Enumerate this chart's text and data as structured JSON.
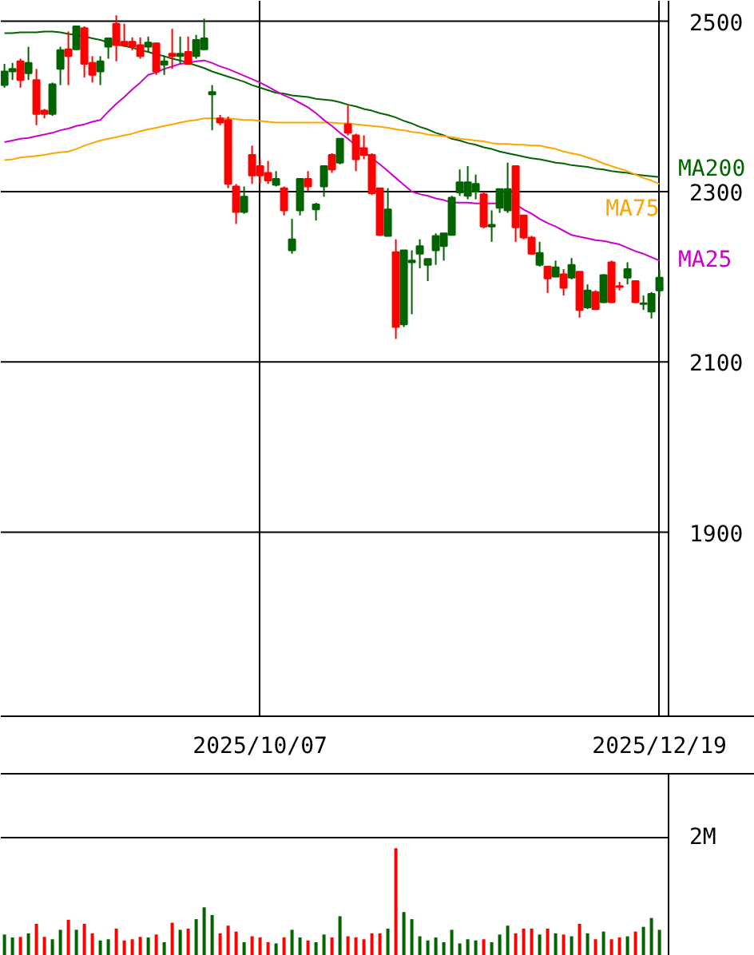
{
  "chart_data": [
    {
      "type": "candlestick",
      "categories": [
        null,
        null,
        null,
        null,
        null,
        null,
        null,
        null,
        null,
        null,
        null,
        null,
        null,
        null,
        null,
        null,
        null,
        null,
        null,
        null,
        null,
        null,
        null,
        null,
        null,
        null,
        null,
        null,
        null,
        null,
        null,
        null,
        "2025/10/07",
        null,
        null,
        null,
        null,
        null,
        null,
        null,
        null,
        null,
        null,
        null,
        null,
        null,
        null,
        null,
        null,
        null,
        null,
        null,
        null,
        null,
        null,
        null,
        null,
        null,
        null,
        null,
        null,
        null,
        null,
        null,
        null,
        null,
        null,
        null,
        null,
        null,
        null,
        null,
        null,
        null,
        null,
        null,
        null,
        null,
        null,
        null,
        null,
        null,
        "2025/12/19"
      ],
      "ohlc": [
        [
          2425,
          2450,
          2422,
          2441
        ],
        [
          2441,
          2451,
          2431,
          2444
        ],
        [
          2453,
          2456,
          2422,
          2431
        ],
        [
          2439,
          2470,
          2431,
          2451
        ],
        [
          2431,
          2444,
          2378,
          2391
        ],
        [
          2395,
          2397,
          2386,
          2391
        ],
        [
          2391,
          2428,
          2389,
          2426
        ],
        [
          2444,
          2470,
          2425,
          2466
        ],
        [
          2467,
          2488,
          2425,
          2459
        ],
        [
          2467,
          2495,
          2466,
          2494
        ],
        [
          2492,
          2494,
          2434,
          2450
        ],
        [
          2451,
          2459,
          2428,
          2437
        ],
        [
          2441,
          2459,
          2425,
          2453
        ],
        [
          2470,
          2481,
          2456,
          2480
        ],
        [
          2497,
          2507,
          2453,
          2472
        ],
        [
          2476,
          2497,
          2470,
          2472
        ],
        [
          2476,
          2481,
          2466,
          2470
        ],
        [
          2472,
          2481,
          2456,
          2459
        ],
        [
          2470,
          2482,
          2464,
          2475
        ],
        [
          2474,
          2475,
          2437,
          2441
        ],
        [
          2449,
          2459,
          2437,
          2453
        ],
        [
          2462,
          2491,
          2444,
          2459
        ],
        [
          2459,
          2482,
          2450,
          2462
        ],
        [
          2464,
          2482,
          2449,
          2450
        ],
        [
          2459,
          2484,
          2456,
          2478
        ],
        [
          2467,
          2503,
          2466,
          2480
        ],
        [
          2414,
          2425,
          2372,
          2417
        ],
        [
          2386,
          2390,
          2378,
          2381
        ],
        [
          2384,
          2388,
          2304,
          2309
        ],
        [
          2306,
          2309,
          2262,
          2276
        ],
        [
          2276,
          2306,
          2274,
          2294
        ],
        [
          2343,
          2354,
          2309,
          2319
        ],
        [
          2330,
          2338,
          2309,
          2319
        ],
        [
          2322,
          2336,
          2309,
          2313
        ],
        [
          2308,
          2324,
          2306,
          2315
        ],
        [
          2304,
          2306,
          2272,
          2278
        ],
        [
          2231,
          2268,
          2227,
          2244
        ],
        [
          2278,
          2315,
          2272,
          2315
        ],
        [
          2315,
          2324,
          2300,
          2306
        ],
        [
          2279,
          2287,
          2266,
          2285
        ],
        [
          2306,
          2330,
          2294,
          2330
        ],
        [
          2343,
          2345,
          2322,
          2326
        ],
        [
          2334,
          2362,
          2332,
          2362
        ],
        [
          2379,
          2401,
          2366,
          2369
        ],
        [
          2366,
          2368,
          2324,
          2338
        ],
        [
          2351,
          2366,
          2338,
          2343
        ],
        [
          2343,
          2345,
          2296,
          2298
        ],
        [
          2304,
          2304,
          2248,
          2249
        ],
        [
          2248,
          2304,
          2248,
          2279
        ],
        [
          2229,
          2244,
          2127,
          2141
        ],
        [
          2144,
          2231,
          2141,
          2231
        ],
        [
          2217,
          2231,
          2156,
          2219
        ],
        [
          2227,
          2244,
          2210,
          2236
        ],
        [
          2214,
          2221,
          2195,
          2221
        ],
        [
          2231,
          2251,
          2214,
          2248
        ],
        [
          2236,
          2251,
          2219,
          2251
        ],
        [
          2249,
          2295,
          2249,
          2293
        ],
        [
          2299,
          2326,
          2295,
          2311
        ],
        [
          2295,
          2330,
          2291,
          2311
        ],
        [
          2300,
          2320,
          2291,
          2309
        ],
        [
          2297,
          2300,
          2257,
          2259
        ],
        [
          2259,
          2278,
          2241,
          2261
        ],
        [
          2281,
          2303,
          2275,
          2303
        ],
        [
          2278,
          2334,
          2275,
          2303
        ],
        [
          2330,
          2330,
          2241,
          2258
        ],
        [
          2272,
          2272,
          2244,
          2246
        ],
        [
          2246,
          2248,
          2226,
          2227
        ],
        [
          2214,
          2241,
          2212,
          2228
        ],
        [
          2212,
          2212,
          2181,
          2198
        ],
        [
          2200,
          2219,
          2200,
          2211
        ],
        [
          2203,
          2209,
          2178,
          2187
        ],
        [
          2199,
          2222,
          2197,
          2214
        ],
        [
          2206,
          2206,
          2152,
          2161
        ],
        [
          2164,
          2191,
          2162,
          2184
        ],
        [
          2182,
          2184,
          2161,
          2162
        ],
        [
          2170,
          2203,
          2169,
          2202
        ],
        [
          2217,
          2219,
          2169,
          2170
        ],
        [
          2189,
          2194,
          2184,
          2188
        ],
        [
          2199,
          2217,
          2191,
          2209
        ],
        [
          2195,
          2196,
          2169,
          2170
        ],
        [
          2168,
          2178,
          2161,
          2169
        ],
        [
          2159,
          2182,
          2151,
          2180
        ],
        [
          2184,
          2209,
          2176,
          2199
        ]
      ],
      "colors": [
        "#006400",
        "#006400",
        "#ff0000",
        "#006400",
        "#ff0000",
        "#ff0000",
        "#006400",
        "#006400",
        "#ff0000",
        "#006400",
        "#ff0000",
        "#ff0000",
        "#006400",
        "#006400",
        "#ff0000",
        "#ff0000",
        "#ff0000",
        "#ff0000",
        "#006400",
        "#ff0000",
        "#006400",
        "#ff0000",
        "#006400",
        "#ff0000",
        "#006400",
        "#006400",
        "#006400",
        "#ff0000",
        "#ff0000",
        "#ff0000",
        "#006400",
        "#ff0000",
        "#ff0000",
        "#ff0000",
        "#006400",
        "#ff0000",
        "#006400",
        "#006400",
        "#ff0000",
        "#006400",
        "#006400",
        "#ff0000",
        "#006400",
        "#ff0000",
        "#ff0000",
        "#ff0000",
        "#ff0000",
        "#ff0000",
        "#006400",
        "#ff0000",
        "#006400",
        "#006400",
        "#006400",
        "#006400",
        "#006400",
        "#006400",
        "#006400",
        "#006400",
        "#006400",
        "#006400",
        "#ff0000",
        "#006400",
        "#006400",
        "#006400",
        "#ff0000",
        "#ff0000",
        "#ff0000",
        "#006400",
        "#ff0000",
        "#006400",
        "#ff0000",
        "#006400",
        "#ff0000",
        "#006400",
        "#ff0000",
        "#006400",
        "#ff0000",
        "#ff0000",
        "#006400",
        "#ff0000",
        "#006400",
        "#006400",
        "#006400"
      ],
      "series": [
        {
          "type": "line",
          "name": "MA200",
          "color": "#006400",
          "values": [
            2486,
            2486,
            2487,
            2487,
            2487,
            2488,
            2488,
            2487,
            2485,
            2484,
            2482,
            2480,
            2478,
            2475,
            2473,
            2471,
            2469,
            2466,
            2464,
            2461,
            2459,
            2456,
            2454,
            2451,
            2448,
            2445,
            2441,
            2438,
            2435,
            2432,
            2429,
            2425,
            2422,
            2419,
            2416,
            2415,
            2413,
            2412,
            2411,
            2409,
            2408,
            2407,
            2405,
            2402,
            2400,
            2397,
            2395,
            2392,
            2390,
            2387,
            2383,
            2380,
            2376,
            2373,
            2369,
            2366,
            2362,
            2360,
            2357,
            2355,
            2352,
            2350,
            2347,
            2345,
            2343,
            2341,
            2339,
            2338,
            2336,
            2334,
            2333,
            2331,
            2330,
            2329,
            2327,
            2326,
            2324,
            2323,
            2322,
            2320,
            2319,
            2318,
            2317
          ]
        },
        {
          "type": "line",
          "name": "MA75",
          "color": "#ffa500",
          "values": [
            2337,
            2338,
            2340,
            2341,
            2342,
            2343,
            2345,
            2346,
            2347,
            2350,
            2354,
            2357,
            2360,
            2362,
            2364,
            2366,
            2368,
            2371,
            2373,
            2375,
            2377,
            2379,
            2381,
            2383,
            2384,
            2386,
            2386,
            2386,
            2386,
            2385,
            2384,
            2384,
            2383,
            2382,
            2381,
            2381,
            2381,
            2381,
            2381,
            2381,
            2381,
            2381,
            2380,
            2380,
            2379,
            2378,
            2377,
            2376,
            2375,
            2373,
            2372,
            2370,
            2369,
            2367,
            2366,
            2365,
            2364,
            2362,
            2361,
            2360,
            2359,
            2357,
            2356,
            2356,
            2355,
            2355,
            2354,
            2354,
            2352,
            2350,
            2347,
            2345,
            2343,
            2340,
            2337,
            2333,
            2330,
            2327,
            2324,
            2320,
            2316,
            2313,
            2309
          ]
        },
        {
          "type": "line",
          "name": "MA25",
          "color": "#cc00cc",
          "values": [
            2358,
            2360,
            2362,
            2363,
            2365,
            2367,
            2369,
            2372,
            2374,
            2377,
            2379,
            2382,
            2384,
            2394,
            2403,
            2411,
            2420,
            2428,
            2437,
            2440,
            2444,
            2447,
            2450,
            2451,
            2453,
            2454,
            2451,
            2447,
            2444,
            2440,
            2436,
            2432,
            2428,
            2423,
            2418,
            2413,
            2409,
            2404,
            2399,
            2392,
            2384,
            2377,
            2369,
            2362,
            2354,
            2347,
            2339,
            2332,
            2324,
            2316,
            2308,
            2300,
            2297,
            2295,
            2292,
            2290,
            2287,
            2287,
            2287,
            2286,
            2286,
            2286,
            2286,
            null,
            2285,
            2279,
            2274,
            2268,
            2263,
            2259,
            2254,
            2249,
            2247,
            2245,
            2243,
            2242,
            2240,
            2238,
            2234,
            2230,
            2227,
            2223,
            2219
          ]
        }
      ],
      "ylim": [
        1684,
        2524
      ],
      "yticks": [
        1900,
        2100,
        2300,
        2500
      ],
      "grid": true
    },
    {
      "type": "bar",
      "categories": [
        null,
        null,
        null,
        null,
        null,
        null,
        null,
        null,
        null,
        null,
        null,
        null,
        null,
        null,
        null,
        null,
        null,
        null,
        null,
        null,
        null,
        null,
        null,
        null,
        null,
        null,
        null,
        null,
        null,
        null,
        null,
        null,
        "2025/10/07",
        null,
        null,
        null,
        null,
        null,
        null,
        null,
        null,
        null,
        null,
        null,
        null,
        null,
        null,
        null,
        null,
        null,
        null,
        null,
        null,
        null,
        null,
        null,
        null,
        null,
        null,
        null,
        null,
        null,
        null,
        null,
        null,
        null,
        null,
        null,
        null,
        null,
        null,
        null,
        null,
        null,
        null,
        null,
        null,
        null,
        null,
        null,
        null,
        null,
        "2025/12/19"
      ],
      "values": [
        0.36,
        0.31,
        0.32,
        0.38,
        0.54,
        0.32,
        0.28,
        0.44,
        0.61,
        0.44,
        0.54,
        0.38,
        0.26,
        0.28,
        0.46,
        0.26,
        0.28,
        0.32,
        0.31,
        0.36,
        0.23,
        0.56,
        0.44,
        0.46,
        0.62,
        0.82,
        0.69,
        0.38,
        0.51,
        0.41,
        0.23,
        0.33,
        0.31,
        0.23,
        0.21,
        0.31,
        0.44,
        0.31,
        0.26,
        0.23,
        0.36,
        0.31,
        0.67,
        0.33,
        0.31,
        0.28,
        0.38,
        0.38,
        0.46,
        1.82,
        0.74,
        0.62,
        0.33,
        0.26,
        0.31,
        0.23,
        0.44,
        0.21,
        0.28,
        0.26,
        0.28,
        0.23,
        0.36,
        0.51,
        0.38,
        0.46,
        0.46,
        0.36,
        0.46,
        0.38,
        0.36,
        0.33,
        0.54,
        0.38,
        0.28,
        0.41,
        0.28,
        0.31,
        0.33,
        0.41,
        0.49,
        0.64,
        0.44
      ],
      "colors": [
        "#006400",
        "#006400",
        "#ff0000",
        "#006400",
        "#ff0000",
        "#ff0000",
        "#006400",
        "#006400",
        "#ff0000",
        "#006400",
        "#ff0000",
        "#ff0000",
        "#006400",
        "#006400",
        "#ff0000",
        "#ff0000",
        "#ff0000",
        "#ff0000",
        "#006400",
        "#ff0000",
        "#006400",
        "#ff0000",
        "#006400",
        "#ff0000",
        "#006400",
        "#006400",
        "#006400",
        "#ff0000",
        "#ff0000",
        "#ff0000",
        "#006400",
        "#ff0000",
        "#ff0000",
        "#ff0000",
        "#006400",
        "#ff0000",
        "#006400",
        "#006400",
        "#ff0000",
        "#006400",
        "#006400",
        "#ff0000",
        "#006400",
        "#ff0000",
        "#ff0000",
        "#ff0000",
        "#ff0000",
        "#ff0000",
        "#006400",
        "#ff0000",
        "#006400",
        "#006400",
        "#006400",
        "#006400",
        "#006400",
        "#006400",
        "#006400",
        "#006400",
        "#006400",
        "#006400",
        "#ff0000",
        "#006400",
        "#006400",
        "#006400",
        "#ff0000",
        "#ff0000",
        "#ff0000",
        "#006400",
        "#ff0000",
        "#006400",
        "#ff0000",
        "#006400",
        "#ff0000",
        "#006400",
        "#ff0000",
        "#006400",
        "#ff0000",
        "#ff0000",
        "#006400",
        "#ff0000",
        "#006400",
        "#006400",
        "#006400"
      ],
      "ylim": [
        0,
        3.08
      ],
      "yticks": [
        {
          "value": 2,
          "label": "2M"
        }
      ],
      "grid": "y",
      "tick_labels": "y"
    }
  ]
}
